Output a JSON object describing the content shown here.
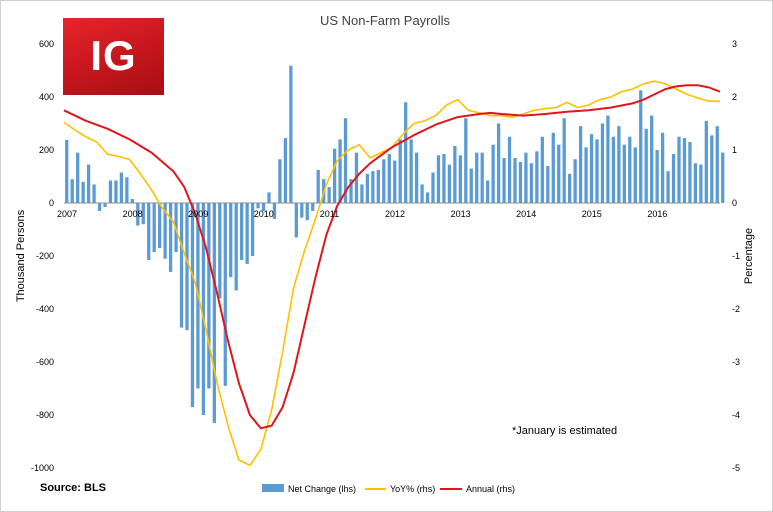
{
  "chart_data": {
    "type": "bar+line",
    "title": "US Non-Farm Payrolls",
    "ylabel_left": "Thousand Persons",
    "ylabel_right": "Percentage",
    "ylim_left": [
      -1000,
      600
    ],
    "ylim_right": [
      -5,
      3
    ],
    "yticks_left": [
      600,
      400,
      200,
      0,
      -200,
      -400,
      -600,
      -800,
      -1000
    ],
    "yticks_right": [
      3,
      2,
      1,
      0,
      -1,
      -2,
      -3,
      -4,
      -5
    ],
    "x_start": "2007-01",
    "x_tick_labels": [
      "2007",
      "2008",
      "2009",
      "2010",
      "2011",
      "2012",
      "2013",
      "2014",
      "2015",
      "2016"
    ],
    "grid": false,
    "legend_position": "bottom",
    "annotation": "*January is estimated",
    "source": "Source: BLS",
    "series": [
      {
        "name": "Net Change (lhs)",
        "type": "bar",
        "axis": "left",
        "color": "#5b9bd5",
        "values": [
          238,
          90,
          190,
          80,
          145,
          70,
          -30,
          -15,
          85,
          85,
          115,
          97,
          15,
          -85,
          -80,
          -215,
          -185,
          -170,
          -210,
          -260,
          -185,
          -470,
          -480,
          -770,
          -700,
          -800,
          -700,
          -830,
          -360,
          -690,
          -280,
          -330,
          -215,
          -230,
          -200,
          -20,
          -30,
          40,
          -60,
          165,
          245,
          518,
          -130,
          -55,
          -65,
          -30,
          125,
          90,
          60,
          205,
          240,
          320,
          90,
          190,
          70,
          110,
          120,
          125,
          165,
          185,
          160,
          240,
          380,
          240,
          190,
          70,
          40,
          115,
          180,
          185,
          145,
          215,
          180,
          320,
          130,
          190,
          190,
          85,
          220,
          300,
          170,
          250,
          170,
          155,
          190,
          150,
          195,
          250,
          140,
          265,
          220,
          320,
          110,
          165,
          290,
          210,
          260,
          240,
          300,
          330,
          250,
          290,
          220,
          250,
          210,
          425,
          280,
          330,
          200,
          265,
          120,
          185,
          250,
          245,
          230,
          150,
          145,
          310,
          255,
          290,
          190
        ]
      },
      {
        "name": "YoY% (rhs)",
        "type": "line",
        "axis": "right",
        "color": "#ffc000",
        "points": [
          [
            0,
            1.52
          ],
          [
            2,
            1.38
          ],
          [
            4,
            1.25
          ],
          [
            6,
            1.15
          ],
          [
            8,
            0.92
          ],
          [
            10,
            0.88
          ],
          [
            12,
            0.82
          ],
          [
            14,
            0.55
          ],
          [
            16,
            0.25
          ],
          [
            18,
            -0.1
          ],
          [
            20,
            -0.35
          ],
          [
            22,
            -0.95
          ],
          [
            24,
            -1.5
          ],
          [
            26,
            -2.4
          ],
          [
            28,
            -3.4
          ],
          [
            30,
            -4.2
          ],
          [
            32,
            -4.85
          ],
          [
            34,
            -4.95
          ],
          [
            36,
            -4.65
          ],
          [
            38,
            -3.9
          ],
          [
            40,
            -2.8
          ],
          [
            42,
            -1.6
          ],
          [
            44,
            -0.9
          ],
          [
            46,
            -0.3
          ],
          [
            48,
            0.35
          ],
          [
            50,
            0.8
          ],
          [
            52,
            1.0
          ],
          [
            54,
            1.1
          ],
          [
            56,
            0.85
          ],
          [
            58,
            0.95
          ],
          [
            60,
            1.05
          ],
          [
            62,
            1.3
          ],
          [
            64,
            1.5
          ],
          [
            66,
            1.55
          ],
          [
            68,
            1.65
          ],
          [
            70,
            1.85
          ],
          [
            72,
            1.95
          ],
          [
            74,
            1.75
          ],
          [
            76,
            1.7
          ],
          [
            78,
            1.65
          ],
          [
            80,
            1.65
          ],
          [
            82,
            1.62
          ],
          [
            84,
            1.68
          ],
          [
            86,
            1.75
          ],
          [
            88,
            1.78
          ],
          [
            90,
            1.8
          ],
          [
            92,
            1.9
          ],
          [
            94,
            1.8
          ],
          [
            96,
            1.85
          ],
          [
            98,
            1.95
          ],
          [
            100,
            2.0
          ],
          [
            102,
            2.1
          ],
          [
            104,
            2.15
          ],
          [
            106,
            2.25
          ],
          [
            108,
            2.3
          ],
          [
            110,
            2.25
          ],
          [
            112,
            2.15
          ],
          [
            114,
            2.05
          ],
          [
            116,
            1.98
          ],
          [
            118,
            1.92
          ],
          [
            120,
            1.92
          ]
        ]
      },
      {
        "name": "Annual (rhs)",
        "type": "line",
        "axis": "right",
        "color": "#e0161c",
        "points": [
          [
            0,
            1.75
          ],
          [
            4,
            1.55
          ],
          [
            8,
            1.4
          ],
          [
            12,
            1.2
          ],
          [
            16,
            0.95
          ],
          [
            20,
            0.6
          ],
          [
            22,
            0.3
          ],
          [
            24,
            -0.2
          ],
          [
            26,
            -0.85
          ],
          [
            28,
            -1.7
          ],
          [
            30,
            -2.6
          ],
          [
            32,
            -3.4
          ],
          [
            34,
            -4.0
          ],
          [
            36,
            -4.25
          ],
          [
            38,
            -4.2
          ],
          [
            40,
            -3.85
          ],
          [
            42,
            -3.2
          ],
          [
            44,
            -2.3
          ],
          [
            46,
            -1.4
          ],
          [
            48,
            -0.6
          ],
          [
            50,
            -0.05
          ],
          [
            52,
            0.3
          ],
          [
            54,
            0.55
          ],
          [
            56,
            0.75
          ],
          [
            60,
            1.05
          ],
          [
            64,
            1.28
          ],
          [
            68,
            1.48
          ],
          [
            72,
            1.62
          ],
          [
            76,
            1.68
          ],
          [
            78,
            1.7
          ],
          [
            80,
            1.68
          ],
          [
            84,
            1.65
          ],
          [
            88,
            1.68
          ],
          [
            92,
            1.72
          ],
          [
            96,
            1.75
          ],
          [
            100,
            1.8
          ],
          [
            104,
            1.88
          ],
          [
            106,
            1.95
          ],
          [
            108,
            2.05
          ],
          [
            110,
            2.15
          ],
          [
            112,
            2.2
          ],
          [
            114,
            2.22
          ],
          [
            116,
            2.22
          ],
          [
            118,
            2.18
          ],
          [
            120,
            2.1
          ]
        ]
      }
    ]
  },
  "logo": {
    "text": "IG",
    "color": "#d2141a"
  }
}
